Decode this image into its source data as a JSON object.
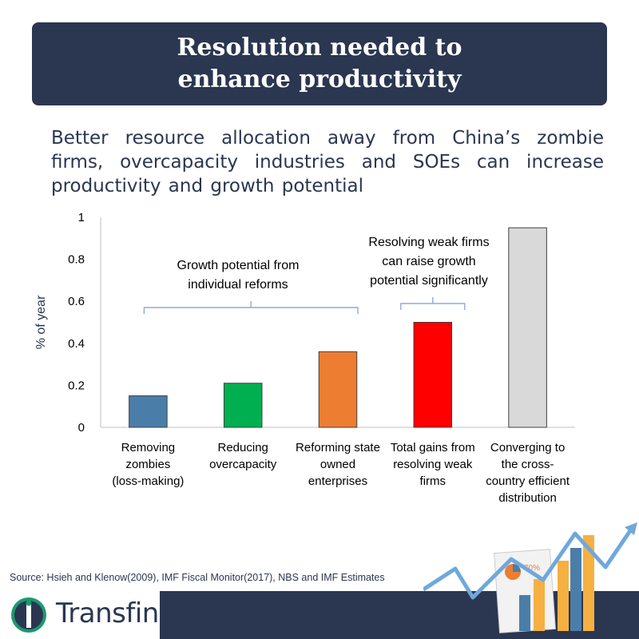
{
  "header": {
    "title_line1": "Resolution needed to",
    "title_line2": "enhance productivity"
  },
  "subtitle": "Better resource allocation away from China’s zombie firms, overcapacity industries and SOEs can increase productivity and growth potential",
  "chart_data": {
    "type": "bar",
    "ylabel": "% of year",
    "ylim": [
      0,
      1
    ],
    "yticks": [
      "0",
      "0.2",
      "0.4",
      "0.6",
      "0.8",
      "1"
    ],
    "categories": [
      [
        "Removing",
        "zombies",
        "(loss-making)"
      ],
      [
        "Reducing",
        "overcapacity"
      ],
      [
        "Reforming state",
        "owned",
        "enterprises"
      ],
      [
        "Total gains from",
        "resolving weak",
        "firms"
      ],
      [
        "Converging to",
        "the cross-",
        "country efficient",
        "distribution"
      ]
    ],
    "values": [
      0.15,
      0.21,
      0.36,
      0.5,
      0.95
    ],
    "colors": [
      "#4a7ea8",
      "#00b050",
      "#ed7d31",
      "#ff0000",
      "#d9d9d9"
    ],
    "annotations": [
      [
        "Growth potential from",
        "individual reforms"
      ],
      [
        "Resolving weak firms",
        "can raise growth",
        "potential significantly"
      ]
    ],
    "grid": false
  },
  "source": "Source: Hsieh and Klenow(2009), IMF Fiscal Monitor(2017), NBS and IMF Estimates",
  "brand": {
    "logo_text": "Transfin.",
    "logo_icon": "transfin-logo-icon",
    "deco_percent": "70%"
  }
}
